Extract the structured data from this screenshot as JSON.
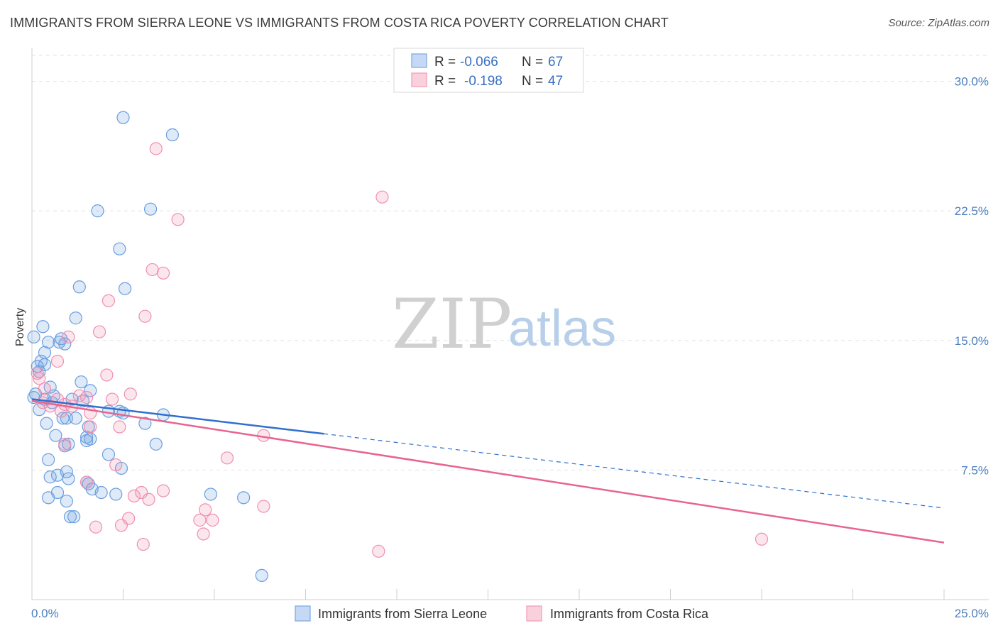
{
  "header": {
    "title": "IMMIGRANTS FROM SIERRA LEONE VS IMMIGRANTS FROM COSTA RICA POVERTY CORRELATION CHART",
    "source": "Source: ZipAtlas.com"
  },
  "watermark": {
    "zip": "ZIP",
    "atlas": "atlas"
  },
  "legend": {
    "r_label": "R =",
    "n_label": "N =",
    "series": [
      {
        "r": "-0.066",
        "n": "67"
      },
      {
        "r": "-0.198",
        "n": "47"
      }
    ]
  },
  "bottom_legend": {
    "items": [
      "Immigrants from Sierra Leone",
      "Immigrants from Costa Rica"
    ]
  },
  "chart_data": {
    "type": "scatter",
    "title": "IMMIGRANTS FROM SIERRA LEONE VS IMMIGRANTS FROM COSTA RICA POVERTY CORRELATION CHART",
    "xlabel": "",
    "ylabel": "Poverty",
    "xlim": [
      0,
      25
    ],
    "ylim": [
      0,
      31.5
    ],
    "x_tick_labels": [
      "0.0%",
      "25.0%"
    ],
    "y_ticks": [
      7.5,
      15.0,
      22.5,
      30.0
    ],
    "y_tick_labels": [
      "7.5%",
      "15.0%",
      "22.5%",
      "30.0%"
    ],
    "colors": {
      "sierra_leone": "#6a9ee0",
      "costa_rica": "#f08fae",
      "sl_line": "#2f6fce",
      "cr_line": "#e8648e"
    },
    "series": [
      {
        "name": "Immigrants from Sierra Leone",
        "points": [
          [
            2.5,
            27.9
          ],
          [
            3.85,
            26.9
          ],
          [
            1.8,
            22.5
          ],
          [
            3.25,
            22.6
          ],
          [
            2.4,
            20.3
          ],
          [
            1.3,
            18.1
          ],
          [
            2.55,
            18.0
          ],
          [
            1.2,
            16.3
          ],
          [
            0.3,
            15.8
          ],
          [
            0.05,
            15.2
          ],
          [
            0.45,
            14.9
          ],
          [
            0.8,
            15.1
          ],
          [
            0.9,
            14.8
          ],
          [
            0.75,
            14.9
          ],
          [
            0.35,
            14.3
          ],
          [
            0.25,
            13.8
          ],
          [
            0.35,
            13.6
          ],
          [
            0.15,
            13.5
          ],
          [
            0.2,
            13.2
          ],
          [
            1.35,
            12.6
          ],
          [
            0.5,
            12.3
          ],
          [
            1.6,
            12.1
          ],
          [
            0.1,
            11.9
          ],
          [
            0.6,
            11.8
          ],
          [
            0.35,
            11.6
          ],
          [
            0.55,
            11.4
          ],
          [
            1.1,
            11.6
          ],
          [
            1.4,
            11.5
          ],
          [
            0.2,
            11.0
          ],
          [
            2.1,
            10.9
          ],
          [
            2.4,
            10.9
          ],
          [
            3.6,
            10.7
          ],
          [
            0.85,
            10.5
          ],
          [
            0.4,
            10.2
          ],
          [
            1.2,
            10.5
          ],
          [
            0.95,
            10.5
          ],
          [
            3.1,
            10.2
          ],
          [
            1.55,
            10.0
          ],
          [
            0.65,
            9.5
          ],
          [
            1.5,
            9.4
          ],
          [
            1.6,
            9.3
          ],
          [
            1.5,
            9.2
          ],
          [
            1.0,
            9.0
          ],
          [
            3.4,
            9.0
          ],
          [
            0.9,
            8.9
          ],
          [
            2.1,
            8.4
          ],
          [
            0.45,
            8.1
          ],
          [
            2.45,
            7.6
          ],
          [
            0.95,
            7.4
          ],
          [
            0.5,
            7.1
          ],
          [
            0.7,
            7.2
          ],
          [
            1.0,
            7.0
          ],
          [
            1.5,
            6.8
          ],
          [
            1.55,
            6.7
          ],
          [
            1.65,
            6.4
          ],
          [
            1.9,
            6.2
          ],
          [
            0.7,
            6.2
          ],
          [
            2.3,
            6.1
          ],
          [
            4.9,
            6.1
          ],
          [
            5.8,
            5.9
          ],
          [
            0.45,
            5.9
          ],
          [
            0.95,
            5.7
          ],
          [
            1.15,
            4.8
          ],
          [
            1.05,
            4.8
          ],
          [
            6.3,
            1.4
          ],
          [
            0.05,
            11.7
          ],
          [
            2.5,
            10.8
          ]
        ]
      },
      {
        "name": "Immigrants from Costa Rica",
        "points": [
          [
            3.4,
            26.1
          ],
          [
            9.6,
            23.3
          ],
          [
            4.0,
            22.0
          ],
          [
            3.3,
            19.1
          ],
          [
            3.6,
            18.9
          ],
          [
            2.1,
            17.3
          ],
          [
            3.1,
            16.4
          ],
          [
            1.85,
            15.5
          ],
          [
            1.0,
            15.2
          ],
          [
            0.7,
            13.8
          ],
          [
            0.15,
            13.1
          ],
          [
            2.05,
            13.0
          ],
          [
            0.2,
            12.8
          ],
          [
            0.35,
            12.2
          ],
          [
            2.7,
            11.9
          ],
          [
            1.3,
            11.8
          ],
          [
            0.7,
            11.6
          ],
          [
            0.3,
            11.4
          ],
          [
            2.2,
            11.6
          ],
          [
            0.5,
            11.2
          ],
          [
            1.1,
            11.2
          ],
          [
            1.6,
            10.8
          ],
          [
            1.6,
            10.0
          ],
          [
            2.4,
            10.0
          ],
          [
            0.9,
            9.0
          ],
          [
            6.35,
            9.5
          ],
          [
            5.35,
            8.2
          ],
          [
            2.3,
            7.8
          ],
          [
            1.5,
            6.8
          ],
          [
            3.6,
            6.3
          ],
          [
            2.8,
            6.0
          ],
          [
            3.0,
            6.2
          ],
          [
            3.2,
            5.8
          ],
          [
            6.35,
            5.4
          ],
          [
            4.75,
            5.2
          ],
          [
            2.65,
            4.7
          ],
          [
            4.6,
            4.6
          ],
          [
            4.95,
            4.6
          ],
          [
            1.75,
            4.2
          ],
          [
            2.45,
            4.3
          ],
          [
            4.7,
            3.8
          ],
          [
            3.05,
            3.2
          ],
          [
            9.5,
            2.8
          ],
          [
            20.0,
            3.5
          ],
          [
            0.9,
            11.3
          ],
          [
            1.5,
            11.7
          ],
          [
            0.8,
            10.9
          ]
        ]
      }
    ],
    "trend_lines": [
      {
        "series": "Immigrants from Sierra Leone",
        "x0": 0,
        "y0": 11.6,
        "x1": 8.0,
        "y1": 9.6,
        "x_dash_end": 25,
        "y_dash_end": 5.3
      },
      {
        "series": "Immigrants from Costa Rica",
        "x0": 0,
        "y0": 11.5,
        "x1": 25,
        "y1": 3.3
      }
    ]
  }
}
